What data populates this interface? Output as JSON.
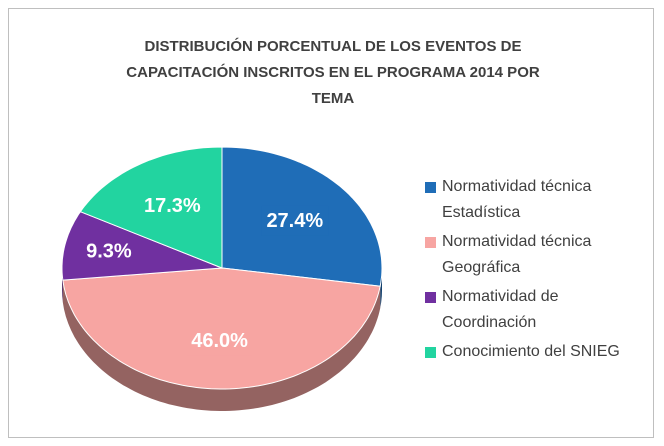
{
  "chart_data": {
    "type": "pie",
    "title": "DISTRIBUCIÓN PORCENTUAL DE LOS EVENTOS DE CAPACITACIÓN INSCRITOS EN EL PROGRAMA 2014 POR TEMA",
    "categories": [
      "Normatividad técnica Estadística",
      "Normatividad técnica Geográfica",
      "Normatividad de Coordinación",
      "Conocimiento del SNIEG"
    ],
    "values": [
      27.4,
      46.0,
      9.3,
      17.3
    ],
    "value_labels": [
      "27.4%",
      "46.0%",
      "9.3%",
      "17.3%"
    ],
    "colors": [
      "#1f6db7",
      "#f7a5a2",
      "#7030a0",
      "#22d4a0"
    ],
    "legend": "right"
  }
}
